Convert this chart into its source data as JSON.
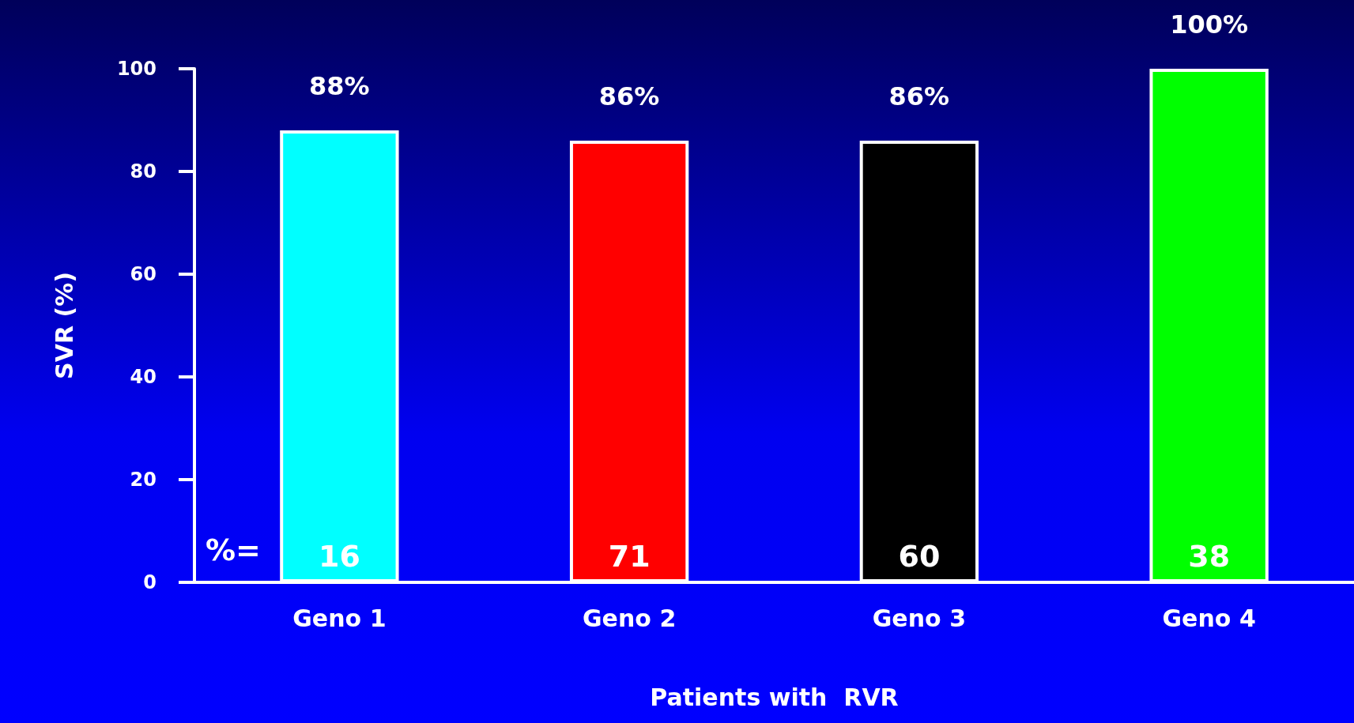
{
  "chart_data": {
    "type": "bar",
    "ylabel": "SVR (%)",
    "xlabel": "Patients with  RVR",
    "categories": [
      "Geno 1",
      "Geno 2",
      "Geno 3",
      "Geno 4"
    ],
    "values": [
      88,
      86,
      86,
      100
    ],
    "colors": [
      "#00ffff",
      "#ff0000",
      "#000000",
      "#00ff00"
    ],
    "value_labels": [
      "88%",
      "86%",
      "86%",
      "100%"
    ],
    "ylim": [
      0,
      100
    ],
    "yticks": [
      0,
      20,
      40,
      60,
      80,
      100
    ],
    "grid": false,
    "annotations": [
      "%=",
      {
        "text": "16",
        "x": "Geno 1",
        "y": 0
      },
      {
        "text": "71",
        "x": "Geno 2",
        "y": 0
      },
      {
        "text": "60",
        "x": "Geno 3",
        "y": 0
      },
      {
        "text": "38",
        "x": "Geno 4",
        "y": 0
      }
    ]
  }
}
